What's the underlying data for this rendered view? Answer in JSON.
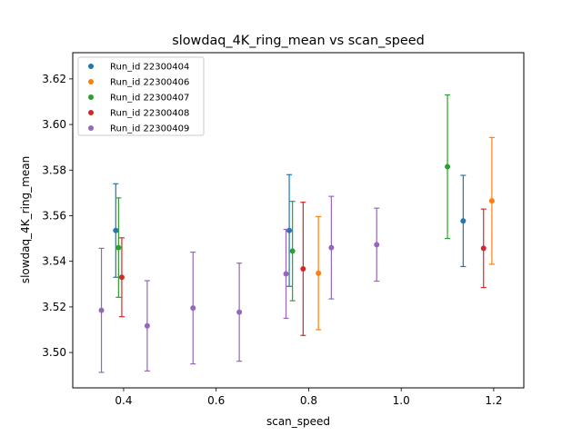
{
  "chart_data": {
    "type": "scatter",
    "title": "slowdaq_4K_ring_mean vs scan_speed",
    "xlabel": "scan_speed",
    "ylabel": "slowdaq_4K_ring_mean",
    "xlim": [
      0.29,
      1.265
    ],
    "ylim": [
      3.4845,
      3.6315
    ],
    "xticks": [
      0.4,
      0.6,
      0.8,
      1.0,
      1.2
    ],
    "xtick_labels": [
      "0.4",
      "0.6",
      "0.8",
      "1.0",
      "1.2"
    ],
    "yticks": [
      3.5,
      3.52,
      3.54,
      3.56,
      3.58,
      3.6,
      3.62
    ],
    "ytick_labels": [
      "3.50",
      "3.52",
      "3.54",
      "3.56",
      "3.58",
      "3.60",
      "3.62"
    ],
    "grid": false,
    "legend_position": "top-left",
    "error_bars": true,
    "series": [
      {
        "name": "Run_id 22300404",
        "color": "#1f77b4",
        "points": [
          {
            "x": 0.383,
            "y": 3.5535,
            "err": 0.0205
          },
          {
            "x": 0.758,
            "y": 3.5535,
            "err": 0.0245
          },
          {
            "x": 1.134,
            "y": 3.5577,
            "err": 0.02
          }
        ]
      },
      {
        "name": "Run_id 22300406",
        "color": "#ff7f0e",
        "points": [
          {
            "x": 0.821,
            "y": 3.5348,
            "err": 0.0248
          },
          {
            "x": 1.196,
            "y": 3.5665,
            "err": 0.0278
          }
        ]
      },
      {
        "name": "Run_id 22300407",
        "color": "#2ca02c",
        "points": [
          {
            "x": 0.389,
            "y": 3.546,
            "err": 0.0218
          },
          {
            "x": 0.765,
            "y": 3.5445,
            "err": 0.0218
          },
          {
            "x": 1.1,
            "y": 3.5815,
            "err": 0.0315
          }
        ]
      },
      {
        "name": "Run_id 22300408",
        "color": "#d62728",
        "points": [
          {
            "x": 0.396,
            "y": 3.533,
            "err": 0.0173
          },
          {
            "x": 0.788,
            "y": 3.5367,
            "err": 0.0292
          },
          {
            "x": 1.178,
            "y": 3.5457,
            "err": 0.0172
          }
        ]
      },
      {
        "name": "Run_id 22300409",
        "color": "#9467bd",
        "points": [
          {
            "x": 0.352,
            "y": 3.5185,
            "err": 0.0272
          },
          {
            "x": 0.451,
            "y": 3.5117,
            "err": 0.0198
          },
          {
            "x": 0.55,
            "y": 3.5195,
            "err": 0.0245
          },
          {
            "x": 0.65,
            "y": 3.5177,
            "err": 0.0215
          },
          {
            "x": 0.751,
            "y": 3.5345,
            "err": 0.0195
          },
          {
            "x": 0.849,
            "y": 3.546,
            "err": 0.0225
          },
          {
            "x": 0.947,
            "y": 3.5473,
            "err": 0.016
          }
        ]
      }
    ]
  }
}
